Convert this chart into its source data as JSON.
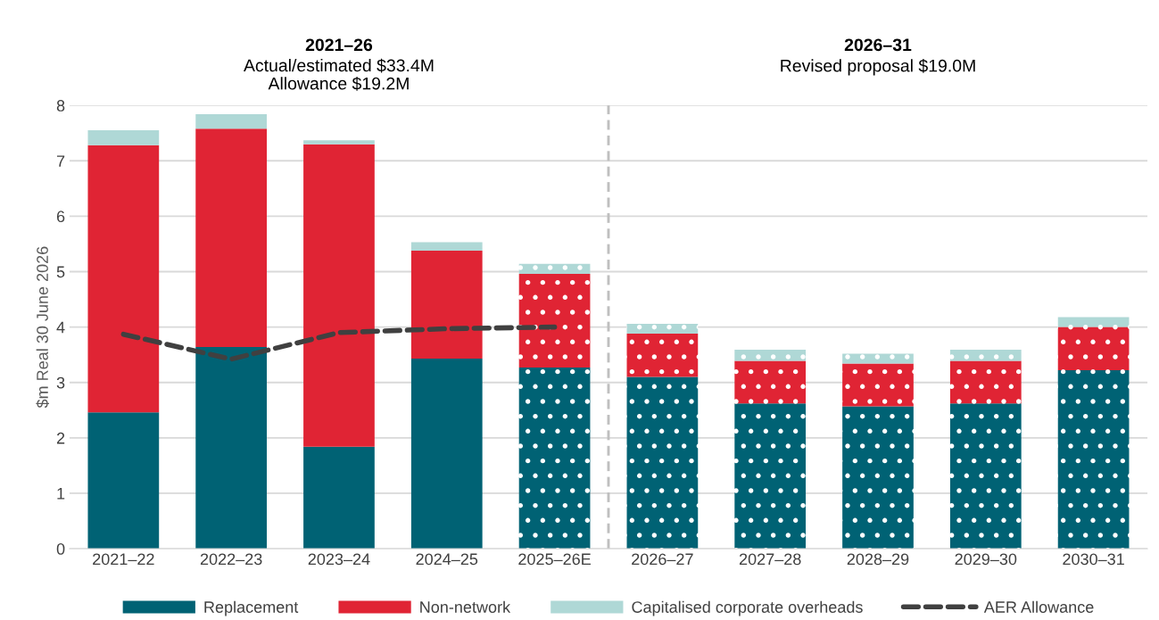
{
  "chart_data": {
    "type": "bar",
    "stacked": true,
    "ylabel": "$m Real 30 June 2026",
    "categories": [
      "2021–22",
      "2022–23",
      "2023–24",
      "2024–25",
      "2025–26E",
      "2026–27",
      "2027–28",
      "2028–29",
      "2029–30",
      "2030–31"
    ],
    "series": [
      {
        "name": "Replacement",
        "color": "#006274",
        "values": [
          2.46,
          3.64,
          1.84,
          3.43,
          3.27,
          3.1,
          2.62,
          2.57,
          2.62,
          3.22
        ]
      },
      {
        "name": "Non-network",
        "color": "#e02434",
        "values": [
          4.82,
          3.94,
          5.46,
          1.95,
          1.69,
          0.78,
          0.77,
          0.77,
          0.77,
          0.78
        ]
      },
      {
        "name": "Capitalised corporate overheads",
        "color": "#afd8d6",
        "values": [
          0.27,
          0.26,
          0.07,
          0.15,
          0.18,
          0.18,
          0.2,
          0.18,
          0.2,
          0.18
        ]
      },
      {
        "name": "AER Allowance",
        "type": "line",
        "color": "#404040",
        "line_style": "dashed",
        "values": [
          3.87,
          3.42,
          3.9,
          3.97,
          4.0,
          null,
          null,
          null,
          null,
          null
        ]
      }
    ],
    "ylim": [
      0,
      8
    ],
    "yticks": [
      0,
      1,
      2,
      3,
      4,
      5,
      6,
      7,
      8
    ],
    "grid": "y",
    "legend": "bottom",
    "annotations": [
      "2021–26",
      "Actual/estimated $33.4M\nAllowance $19.2M",
      "2026–31",
      "Revised proposal $19.0M"
    ]
  }
}
